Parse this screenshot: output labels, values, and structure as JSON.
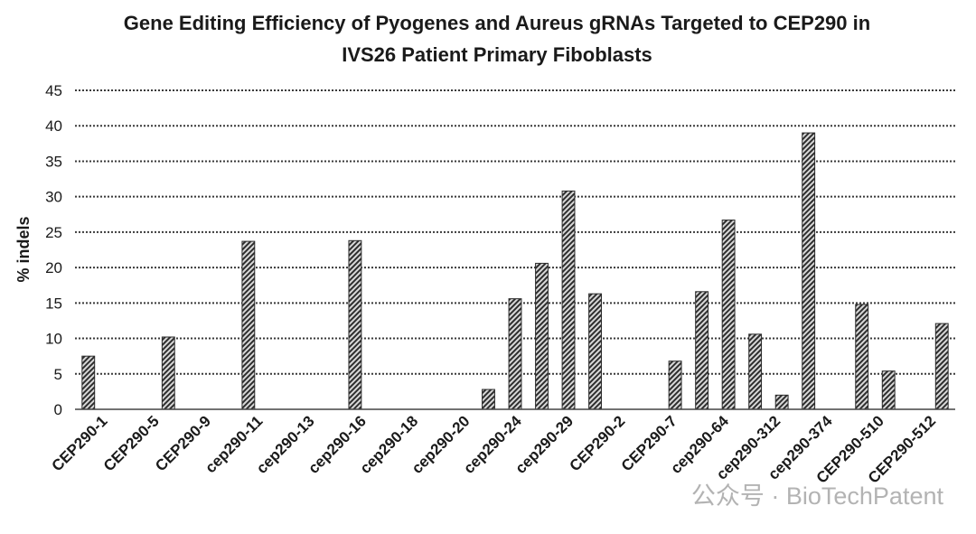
{
  "chart_data": {
    "type": "bar",
    "title": [
      "Gene Editing Efficiency of Pyogenes and Aureus gRNAs Targeted to CEP290 in",
      "IVS26 Patient Primary Fiboblasts"
    ],
    "ylabel": "% indels",
    "xlabel": "",
    "ylim": [
      0,
      45
    ],
    "yticks": [
      0,
      5,
      10,
      15,
      20,
      25,
      30,
      35,
      40,
      45
    ],
    "grid": true,
    "legend": "none",
    "bar_color": "#5a5a5a",
    "categories": [
      "CEP290-1",
      "CEP290-5",
      "CEP290-9",
      "cep290-11",
      "cep290-13",
      "cep290-16",
      "cep290-18",
      "cep290-20",
      "cep290-24",
      "cep290-29",
      "CEP290-2",
      "CEP290-7",
      "cep290-64",
      "cep290-312",
      "cep290-374",
      "CEP290-510",
      "CEP290-512"
    ],
    "bars": [
      {
        "x": 0,
        "value": 7.5
      },
      {
        "x": 3,
        "value": 10.2
      },
      {
        "x": 6,
        "value": 23.7
      },
      {
        "x": 10,
        "value": 23.8
      },
      {
        "x": 15,
        "value": 2.8
      },
      {
        "x": 16,
        "value": 15.6
      },
      {
        "x": 17,
        "value": 20.6
      },
      {
        "x": 18,
        "value": 30.8
      },
      {
        "x": 19,
        "value": 16.3
      },
      {
        "x": 22,
        "value": 6.8
      },
      {
        "x": 23,
        "value": 16.6
      },
      {
        "x": 24,
        "value": 26.7
      },
      {
        "x": 25,
        "value": 10.6
      },
      {
        "x": 26,
        "value": 2.0
      },
      {
        "x": 27,
        "value": 39.0
      },
      {
        "x": 29,
        "value": 14.8
      },
      {
        "x": 30,
        "value": 5.4
      },
      {
        "x": 32,
        "value": 12.1
      }
    ],
    "slots": 33
  },
  "watermark": {
    "text": "公众号 · BioTechPatent"
  }
}
